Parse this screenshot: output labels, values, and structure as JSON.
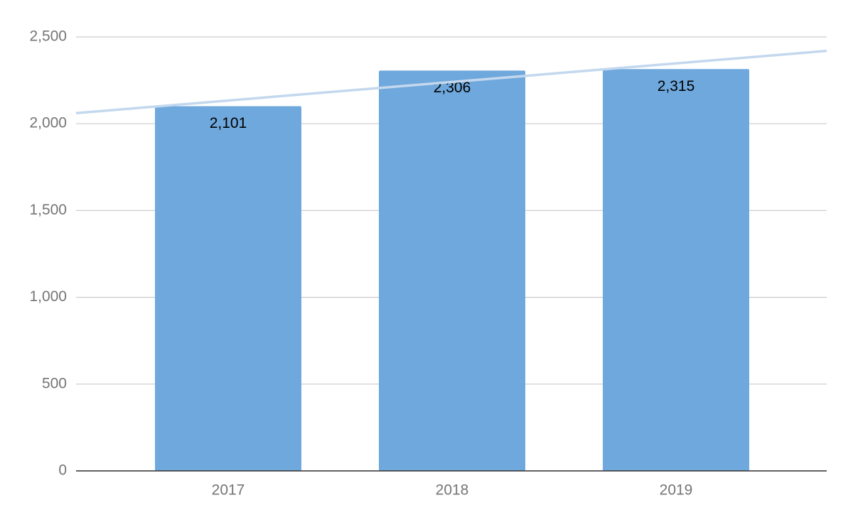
{
  "chart_data": {
    "type": "bar",
    "categories": [
      "2017",
      "2018",
      "2019"
    ],
    "values": [
      2101,
      2306,
      2315
    ],
    "value_labels": [
      "2,101",
      "2,306",
      "2,315"
    ],
    "color": "#6fa8dc",
    "trendline": true,
    "trendline_color": "#c3d8ee",
    "ylim": [
      0,
      2500
    ],
    "yticks": [
      0,
      500,
      {
        "value": 1000,
        "label": "1,000"
      },
      {
        "value": 1500,
        "label": "1,500"
      },
      {
        "value": 2000,
        "label": "2,000"
      },
      {
        "value": 2500,
        "label": "2,500"
      }
    ],
    "grid": true
  }
}
